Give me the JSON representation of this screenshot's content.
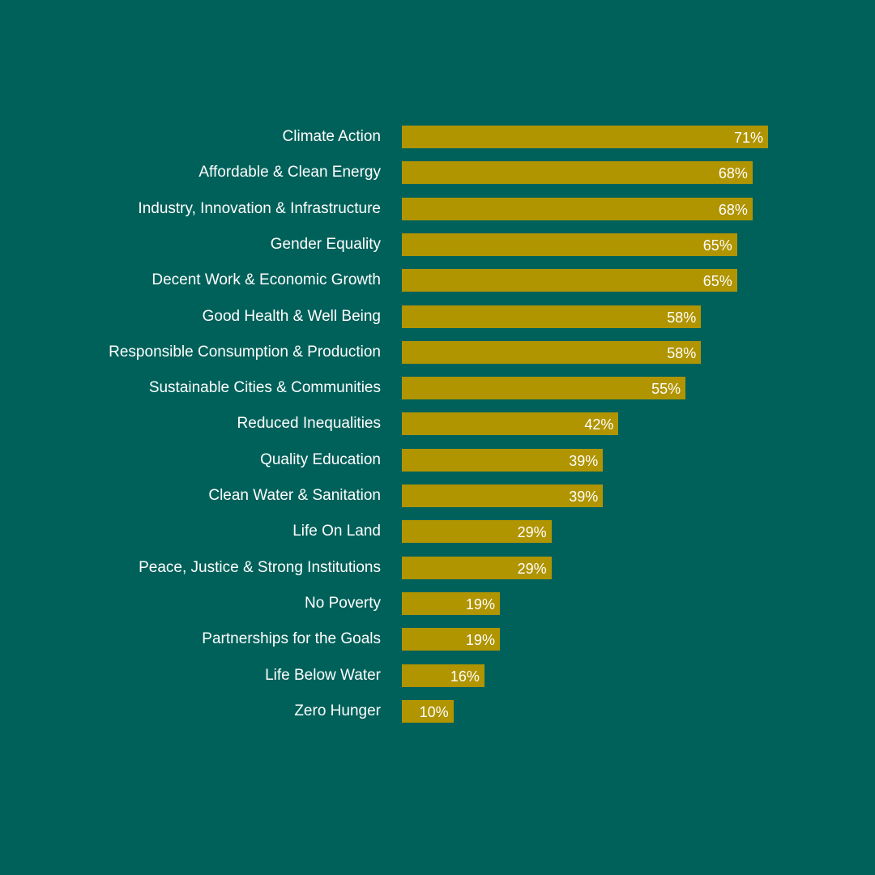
{
  "colors": {
    "background": "#00615a",
    "bar": "#b09400",
    "text": "#ffffff"
  },
  "chart_data": {
    "type": "bar",
    "orientation": "horizontal",
    "categories": [
      "Climate Action",
      "Affordable & Clean Energy",
      "Industry, Innovation & Infrastructure",
      "Gender Equality",
      "Decent Work & Economic Growth",
      "Good Health & Well Being",
      "Responsible Consumption & Production",
      "Sustainable Cities & Communities",
      "Reduced Inequalities",
      "Quality Education",
      "Clean Water & Sanitation",
      "Life On Land",
      "Peace, Justice & Strong Institutions",
      "No Poverty",
      "Partnerships for the Goals",
      "Life Below Water",
      "Zero Hunger"
    ],
    "values": [
      71,
      68,
      68,
      65,
      65,
      58,
      58,
      55,
      42,
      39,
      39,
      29,
      29,
      19,
      19,
      16,
      10
    ],
    "value_labels": [
      "71%",
      "68%",
      "68%",
      "65%",
      "65%",
      "58%",
      "58%",
      "55%",
      "42%",
      "39%",
      "39%",
      "29%",
      "29%",
      "19%",
      "19%",
      "16%",
      "10%"
    ],
    "title": "",
    "xlabel": "",
    "ylabel": "",
    "xlim": [
      0,
      71
    ],
    "grid": false,
    "legend": "none"
  }
}
